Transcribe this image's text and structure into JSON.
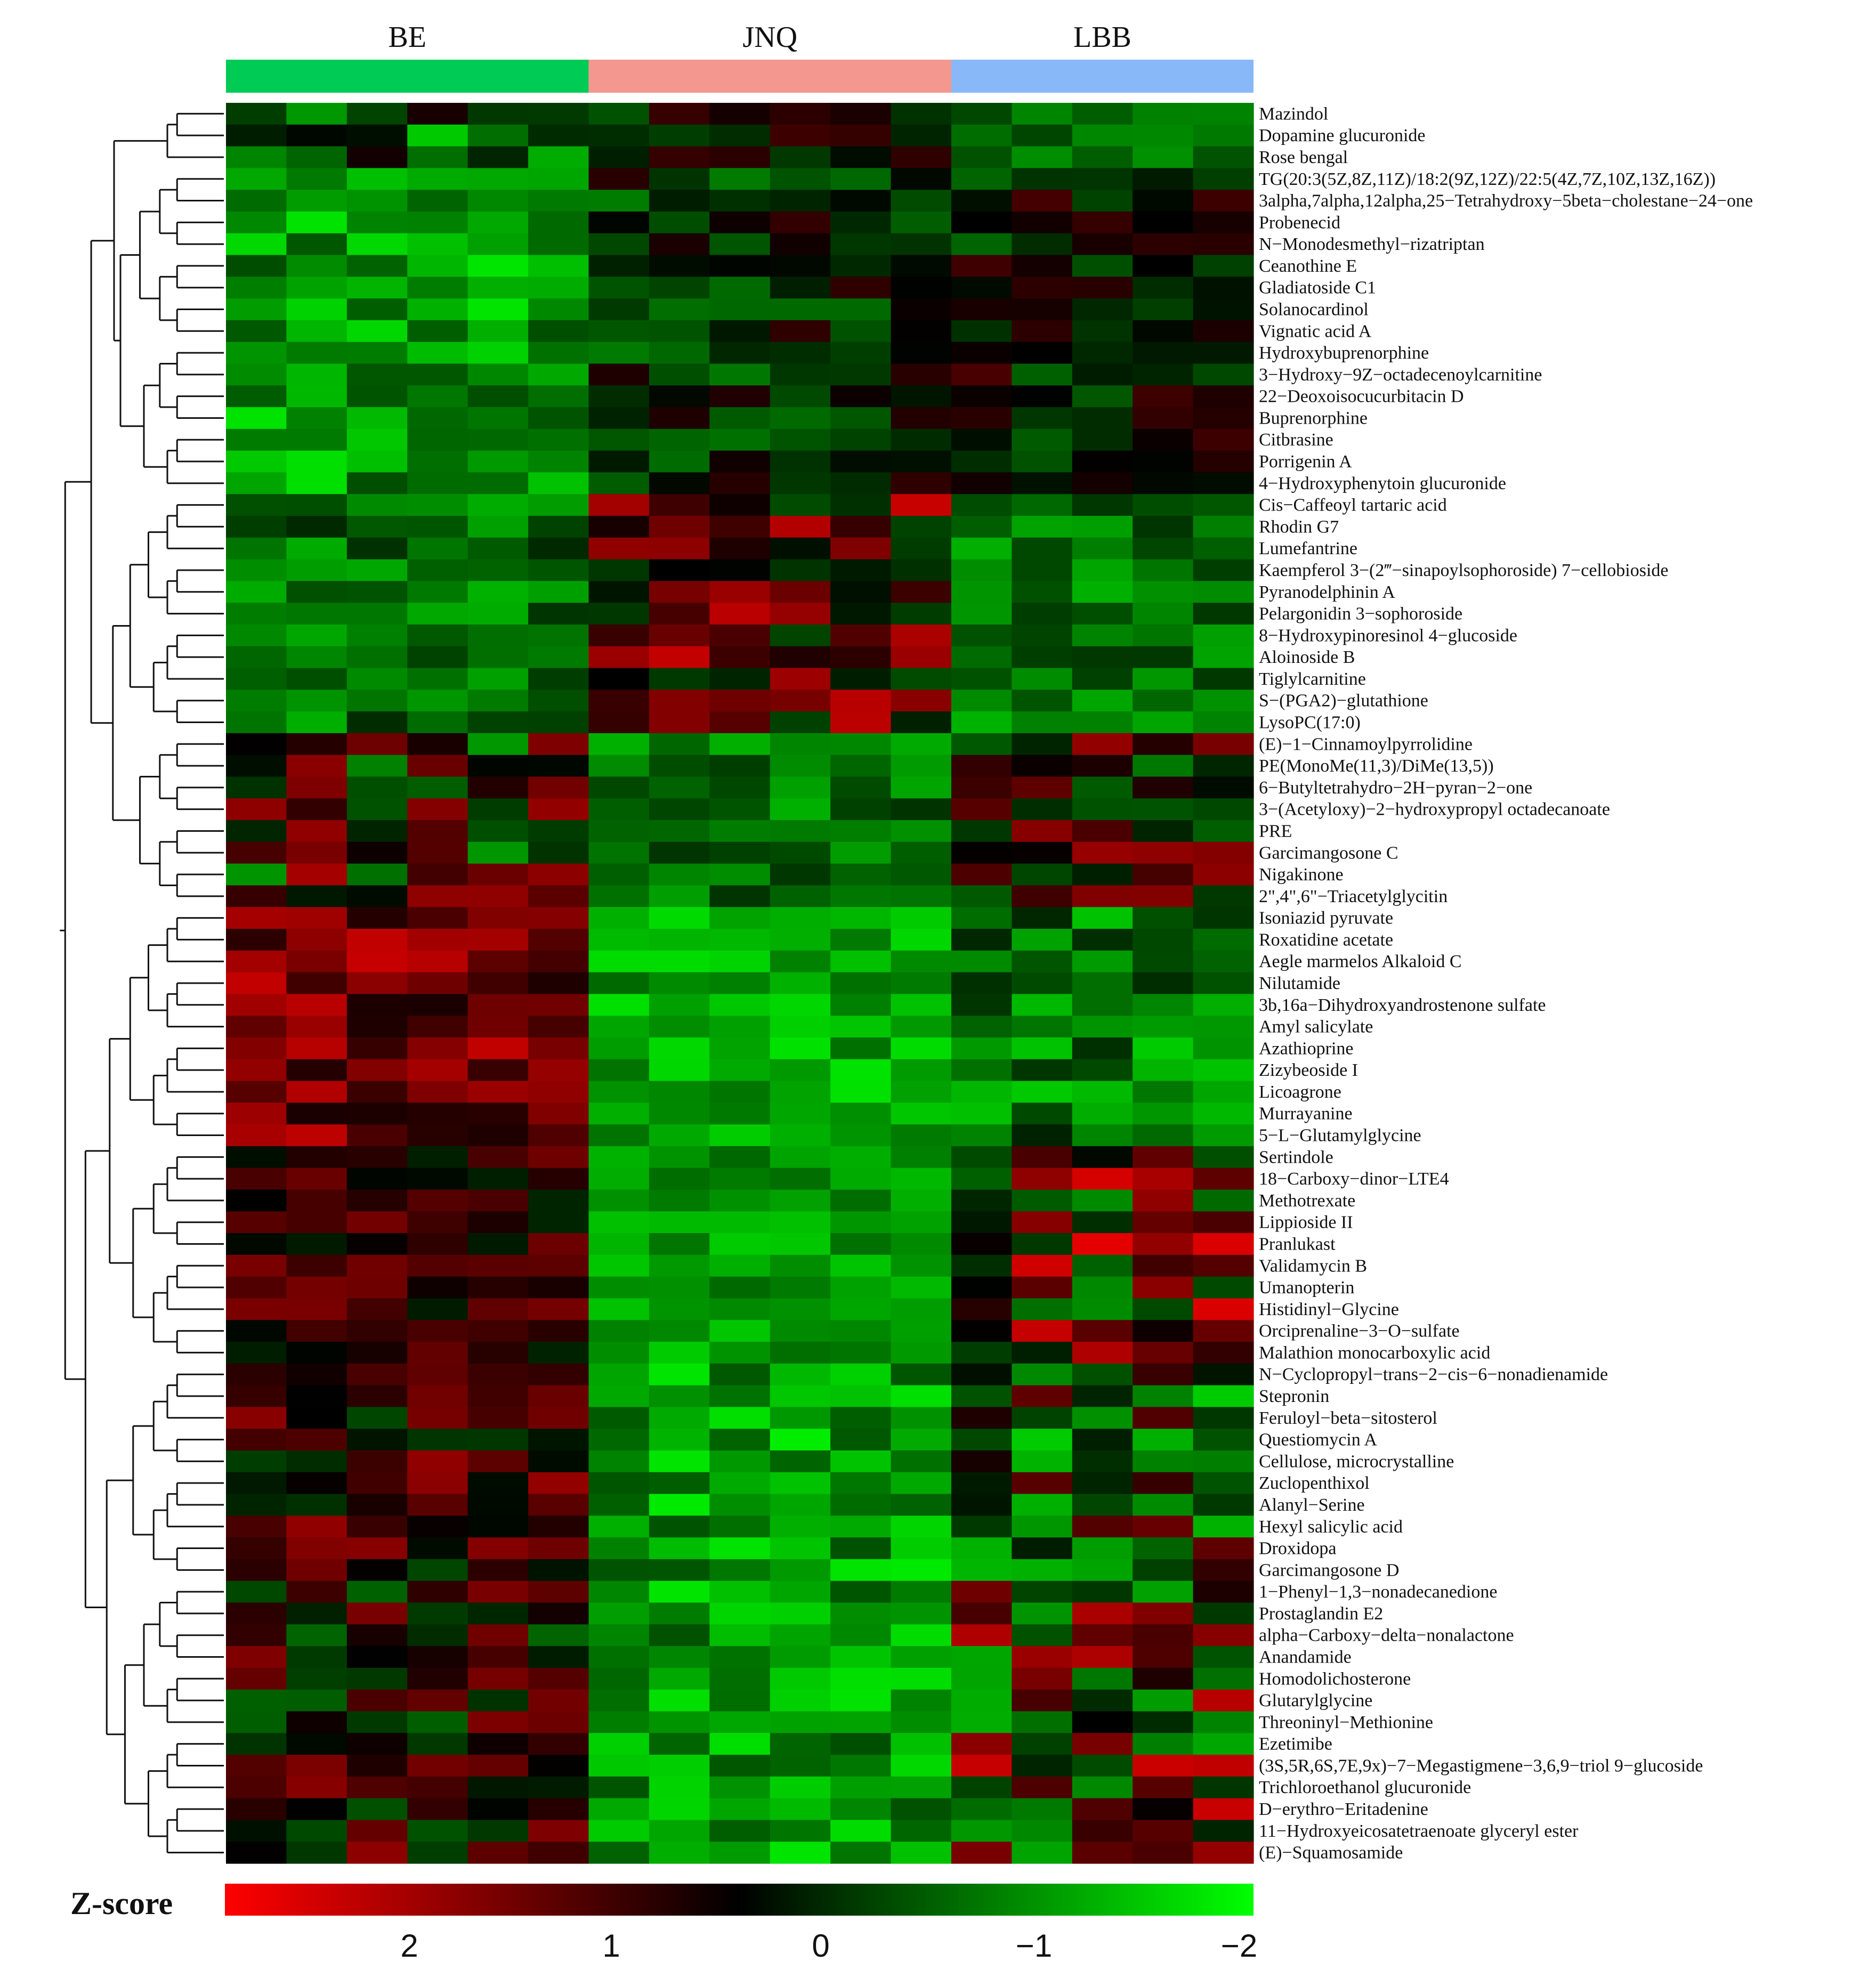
{
  "chart_data": {
    "type": "heatmap",
    "title": "",
    "groups": [
      {
        "name": "BE",
        "color": "#00CC55",
        "columns": 6
      },
      {
        "name": "JNQ",
        "color": "#F4978E",
        "columns": 6
      },
      {
        "name": "LBB",
        "color": "#88B8F8",
        "columns": 5
      }
    ],
    "colorscale": {
      "title": "Z-score",
      "ticks": [
        2,
        1,
        0,
        -1,
        -2
      ],
      "tick_labels": [
        "2",
        "1",
        "0",
        "−1",
        "−2"
      ],
      "low_color": "#00FF00",
      "mid_color": "#000000",
      "high_color": "#FF0000",
      "range": [
        -2,
        2
      ]
    },
    "rows": [
      "Mazindol",
      "Dopamine glucuronide",
      "Rose bengal",
      "TG(20:3(5Z,8Z,11Z)/18:2(9Z,12Z)/22:5(4Z,7Z,10Z,13Z,16Z))",
      "3alpha,7alpha,12alpha,25−Tetrahydroxy−5beta−cholestane−24−one",
      "Probenecid",
      "N−Monodesmethyl−rizatriptan",
      "Ceanothine E",
      "Gladiatoside C1",
      "Solanocardinol",
      "Vignatic acid A",
      "Hydroxybuprenorphine",
      "3−Hydroxy−9Z−octadecenoylcarnitine",
      "22−Deoxoisocucurbitacin D",
      "Buprenorphine",
      "Citbrasine",
      "Porrigenin A",
      "4−Hydroxyphenytoin glucuronide",
      "Cis−Caffeoyl tartaric acid",
      "Rhodin G7",
      "Lumefantrine",
      "Kaempferol 3−(2‴−sinapoylsophoroside) 7−cellobioside",
      "Pyranodelphinin A",
      "Pelargonidin 3−sophoroside",
      "8−Hydroxypinoresinol 4−glucoside",
      "Aloinoside B",
      "Tiglylcarnitine",
      "S−(PGA2)−glutathione",
      "LysoPC(17:0)",
      "(E)−1−Cinnamoylpyrrolidine",
      "PE(MonoMe(11,3)/DiMe(13,5))",
      "6−Butyltetrahydro−2H−pyran−2−one",
      "3−(Acetyloxy)−2−hydroxypropyl octadecanoate",
      "PRE",
      "Garcimangosone C",
      "Nigakinone",
      "2\",4\",6\"−Triacetylglycitin",
      "Isoniazid pyruvate",
      "Roxatidine acetate",
      "Aegle marmelos Alkaloid C",
      "Nilutamide",
      "3b,16a−Dihydroxyandrostenone sulfate",
      "Amyl salicylate",
      "Azathioprine",
      "Zizybeoside I",
      "Licoagrone",
      "Murrayanine",
      "5−L−Glutamylglycine",
      "Sertindole",
      "18−Carboxy−dinor−LTE4",
      "Methotrexate",
      "Lippioside II",
      "Pranlukast",
      "Validamycin B",
      "Umanopterin",
      "Histidinyl−Glycine",
      "Orciprenaline−3−O−sulfate",
      "Malathion monocarboxylic acid",
      "N−Cyclopropyl−trans−2−cis−6−nonadienamide",
      "Stepronin",
      "Feruloyl−beta−sitosterol",
      "Questiomycin A",
      "Cellulose, microcrystalline",
      "Zuclopenthixol",
      "Alanyl−Serine",
      "Hexyl salicylic acid",
      "Droxidopa",
      "Garcimangosone D",
      "1−Phenyl−1,3−nonadecanedione",
      "Prostaglandin E2",
      "alpha−Carboxy−delta−nonalactone",
      "Anandamide",
      "Homodolichosterone",
      "Glutarylglycine",
      "Threoninyl−Methionine",
      "Ezetimibe",
      "(3S,5R,6S,7E,9x)−7−Megastigmene−3,6,9−triol 9−glucoside",
      "Trichloroethanol glucuronide",
      "D−erythro−Eritadenine",
      "11−Hydroxyeicosatetraenoate glyceryl ester",
      "(E)−Squamosamide"
    ],
    "block_pattern": [
      {
        "rows": [
          0,
          2
        ],
        "BE": [
          0.2,
          -1.8
        ],
        "JNQ": [
          0.6,
          -0.9
        ],
        "LBB": [
          -0.4,
          -1.2
        ]
      },
      {
        "rows": [
          3,
          17
        ],
        "BE": [
          -0.6,
          -1.8
        ],
        "JNQ": [
          0.4,
          -1.0
        ],
        "LBB": [
          0.6,
          -0.8
        ]
      },
      {
        "rows": [
          18,
          28
        ],
        "BE": [
          -0.3,
          -1.4
        ],
        "JNQ": [
          1.6,
          -0.6
        ],
        "LBB": [
          -0.4,
          -1.4
        ]
      },
      {
        "rows": [
          29,
          36
        ],
        "BE": [
          1.4,
          -1.2
        ],
        "JNQ": [
          -0.4,
          -1.4
        ],
        "LBB": [
          1.2,
          -1.0
        ]
      },
      {
        "rows": [
          37,
          47
        ],
        "BE": [
          1.6,
          0.2
        ],
        "JNQ": [
          -0.8,
          -1.8
        ],
        "LBB": [
          -0.2,
          -1.6
        ]
      },
      {
        "rows": [
          48,
          57
        ],
        "BE": [
          1.0,
          -0.3
        ],
        "JNQ": [
          -0.8,
          -1.6
        ],
        "LBB": [
          1.8,
          -1.2
        ]
      },
      {
        "rows": [
          58,
          67
        ],
        "BE": [
          1.2,
          -0.6
        ],
        "JNQ": [
          -0.6,
          -1.9
        ],
        "LBB": [
          1.0,
          -1.6
        ]
      },
      {
        "rows": [
          68,
          80
        ],
        "BE": [
          1.1,
          -0.8
        ],
        "JNQ": [
          -0.6,
          -1.8
        ],
        "LBB": [
          1.6,
          -1.4
        ]
      }
    ]
  }
}
